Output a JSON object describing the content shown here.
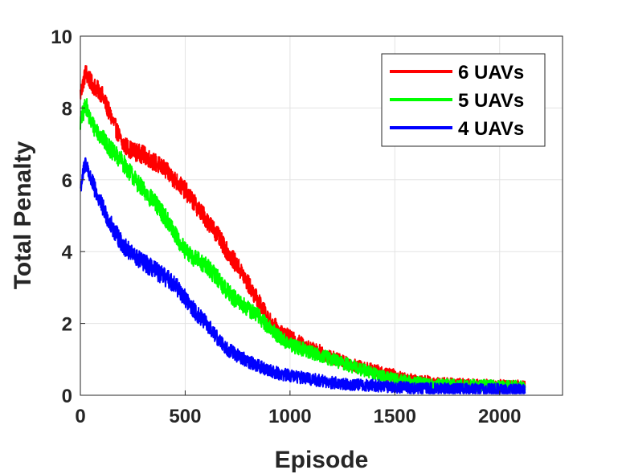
{
  "chart_data": {
    "type": "line",
    "title": "",
    "xlabel": "Episode",
    "ylabel": "Total Penalty",
    "xlim": [
      0,
      2300
    ],
    "ylim": [
      0,
      10
    ],
    "xticks": [
      0,
      500,
      1000,
      1500,
      2000
    ],
    "yticks": [
      0,
      2,
      4,
      6,
      8,
      10
    ],
    "xtick_labels": [
      "0",
      "500",
      "1000",
      "1500",
      "2000"
    ],
    "ytick_labels": [
      "0",
      "2",
      "4",
      "6",
      "8",
      "10"
    ],
    "grid": true,
    "legend_position": "top-right",
    "series": [
      {
        "name": "6 UAVs",
        "color": "#ff0000",
        "x": [
          0,
          25,
          50,
          100,
          150,
          200,
          250,
          300,
          350,
          400,
          450,
          500,
          550,
          600,
          650,
          700,
          750,
          800,
          850,
          900,
          950,
          1000,
          1050,
          1100,
          1150,
          1200,
          1250,
          1300,
          1350,
          1400,
          1450,
          1500,
          1550,
          1600,
          1650,
          1700,
          1750,
          1800,
          1850,
          1900,
          1950,
          2000,
          2050,
          2120
        ],
        "y": [
          8.4,
          9.0,
          8.7,
          8.4,
          7.7,
          7.0,
          6.8,
          6.7,
          6.5,
          6.3,
          6.0,
          5.7,
          5.3,
          4.9,
          4.5,
          4.0,
          3.6,
          3.1,
          2.6,
          2.1,
          1.8,
          1.6,
          1.45,
          1.3,
          1.2,
          1.05,
          0.95,
          0.85,
          0.75,
          0.7,
          0.6,
          0.55,
          0.45,
          0.4,
          0.38,
          0.35,
          0.33,
          0.3,
          0.3,
          0.28,
          0.28,
          0.27,
          0.26,
          0.25
        ]
      },
      {
        "name": "5 UAVs",
        "color": "#00ff00",
        "x": [
          0,
          25,
          50,
          100,
          150,
          200,
          250,
          300,
          350,
          400,
          450,
          500,
          550,
          600,
          650,
          700,
          750,
          800,
          850,
          900,
          950,
          1000,
          1050,
          1100,
          1150,
          1200,
          1250,
          1300,
          1350,
          1400,
          1450,
          1500,
          1550,
          1600,
          1650,
          1700,
          1750,
          1800,
          1850,
          1900,
          1950,
          2000,
          2050,
          2120
        ],
        "y": [
          7.6,
          8.1,
          7.6,
          7.2,
          6.8,
          6.5,
          6.1,
          5.7,
          5.4,
          5.0,
          4.5,
          4.0,
          3.8,
          3.6,
          3.3,
          2.9,
          2.6,
          2.4,
          2.2,
          1.9,
          1.6,
          1.4,
          1.3,
          1.2,
          1.1,
          1.0,
          0.9,
          0.8,
          0.7,
          0.6,
          0.5,
          0.45,
          0.4,
          0.35,
          0.33,
          0.3,
          0.3,
          0.28,
          0.27,
          0.27,
          0.26,
          0.25,
          0.25,
          0.24
        ]
      },
      {
        "name": "4 UAVs",
        "color": "#0000ff",
        "x": [
          0,
          25,
          50,
          100,
          150,
          200,
          250,
          300,
          350,
          400,
          450,
          500,
          550,
          600,
          650,
          700,
          750,
          800,
          850,
          900,
          950,
          1000,
          1050,
          1100,
          1150,
          1200,
          1250,
          1300,
          1350,
          1400,
          1450,
          1500,
          1550,
          1600,
          1650,
          1700,
          1750,
          1800,
          1850,
          1900,
          1950,
          2000,
          2050,
          2120
        ],
        "y": [
          5.8,
          6.5,
          6.0,
          5.3,
          4.7,
          4.2,
          3.9,
          3.7,
          3.5,
          3.3,
          3.1,
          2.7,
          2.3,
          2.0,
          1.6,
          1.3,
          1.1,
          0.95,
          0.8,
          0.7,
          0.6,
          0.55,
          0.5,
          0.45,
          0.4,
          0.35,
          0.32,
          0.3,
          0.28,
          0.27,
          0.25,
          0.23,
          0.22,
          0.2,
          0.19,
          0.18,
          0.18,
          0.17,
          0.17,
          0.16,
          0.16,
          0.16,
          0.15,
          0.15
        ]
      }
    ]
  }
}
